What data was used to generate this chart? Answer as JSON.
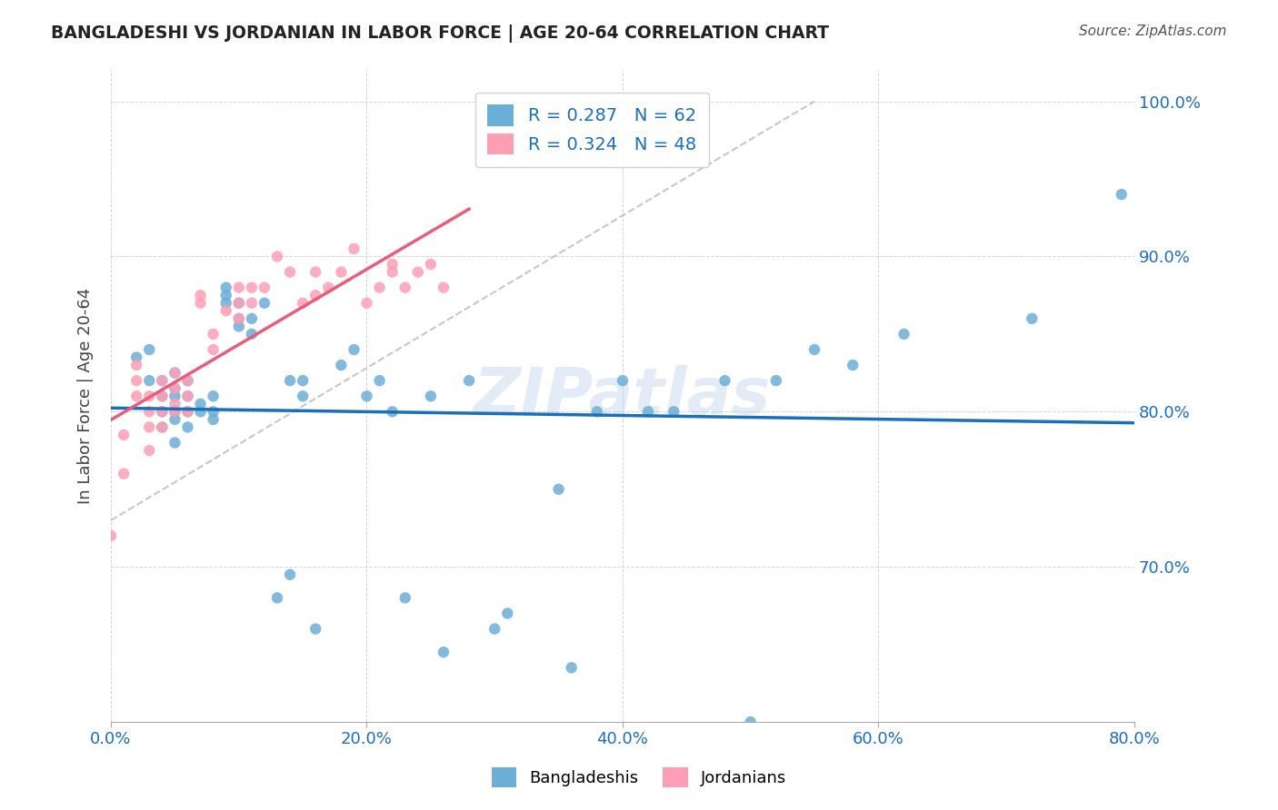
{
  "title": "BANGLADESHI VS JORDANIAN IN LABOR FORCE | AGE 20-64 CORRELATION CHART",
  "source": "Source: ZipAtlas.com",
  "xlabel": "",
  "ylabel": "In Labor Force | Age 20-64",
  "x_min": 0.0,
  "x_max": 0.8,
  "y_min": 0.6,
  "y_max": 1.02,
  "x_tick_labels": [
    "0.0%",
    "20.0%",
    "40.0%",
    "60.0%",
    "80.0%"
  ],
  "y_tick_labels": [
    "70.0%",
    "80.0%",
    "90.0%",
    "100.0%"
  ],
  "background_color": "#ffffff",
  "blue_color": "#6baed6",
  "pink_color": "#fc9fb5",
  "trend_blue": "#1a6fbd",
  "trend_pink": "#e85d7a",
  "trend_dashed": "#b0b0b0",
  "R_blue": 0.287,
  "N_blue": 62,
  "R_pink": 0.324,
  "N_pink": 48,
  "watermark": "ZIPatlas",
  "legend_label_blue": "Bangladeshis",
  "legend_label_pink": "Jordanians",
  "bangladeshi_x": [
    0.02,
    0.03,
    0.03,
    0.04,
    0.04,
    0.04,
    0.04,
    0.05,
    0.05,
    0.05,
    0.05,
    0.05,
    0.05,
    0.06,
    0.06,
    0.06,
    0.06,
    0.07,
    0.07,
    0.08,
    0.08,
    0.08,
    0.09,
    0.09,
    0.09,
    0.1,
    0.1,
    0.1,
    0.11,
    0.11,
    0.12,
    0.13,
    0.14,
    0.14,
    0.15,
    0.15,
    0.16,
    0.18,
    0.19,
    0.2,
    0.21,
    0.22,
    0.23,
    0.25,
    0.26,
    0.28,
    0.3,
    0.31,
    0.35,
    0.36,
    0.38,
    0.4,
    0.42,
    0.44,
    0.48,
    0.5,
    0.52,
    0.55,
    0.58,
    0.62,
    0.72,
    0.79
  ],
  "bangladeshi_y": [
    0.835,
    0.82,
    0.84,
    0.79,
    0.8,
    0.81,
    0.82,
    0.78,
    0.795,
    0.8,
    0.81,
    0.815,
    0.825,
    0.79,
    0.8,
    0.81,
    0.82,
    0.8,
    0.805,
    0.795,
    0.8,
    0.81,
    0.87,
    0.875,
    0.88,
    0.855,
    0.86,
    0.87,
    0.85,
    0.86,
    0.87,
    0.68,
    0.695,
    0.82,
    0.81,
    0.82,
    0.66,
    0.83,
    0.84,
    0.81,
    0.82,
    0.8,
    0.68,
    0.81,
    0.645,
    0.82,
    0.66,
    0.67,
    0.75,
    0.635,
    0.8,
    0.82,
    0.8,
    0.8,
    0.82,
    0.6,
    0.82,
    0.84,
    0.83,
    0.85,
    0.86,
    0.94
  ],
  "jordanian_x": [
    0.0,
    0.01,
    0.01,
    0.02,
    0.02,
    0.02,
    0.03,
    0.03,
    0.03,
    0.03,
    0.04,
    0.04,
    0.04,
    0.04,
    0.05,
    0.05,
    0.05,
    0.05,
    0.06,
    0.06,
    0.06,
    0.07,
    0.07,
    0.08,
    0.08,
    0.09,
    0.1,
    0.1,
    0.1,
    0.11,
    0.11,
    0.12,
    0.13,
    0.14,
    0.15,
    0.16,
    0.16,
    0.17,
    0.18,
    0.19,
    0.2,
    0.21,
    0.22,
    0.22,
    0.23,
    0.24,
    0.25,
    0.26
  ],
  "jordanian_y": [
    0.72,
    0.76,
    0.785,
    0.81,
    0.82,
    0.83,
    0.775,
    0.79,
    0.8,
    0.81,
    0.79,
    0.8,
    0.81,
    0.82,
    0.8,
    0.805,
    0.815,
    0.825,
    0.8,
    0.81,
    0.82,
    0.87,
    0.875,
    0.84,
    0.85,
    0.865,
    0.86,
    0.87,
    0.88,
    0.87,
    0.88,
    0.88,
    0.9,
    0.89,
    0.87,
    0.875,
    0.89,
    0.88,
    0.89,
    0.905,
    0.87,
    0.88,
    0.89,
    0.895,
    0.88,
    0.89,
    0.895,
    0.88
  ]
}
